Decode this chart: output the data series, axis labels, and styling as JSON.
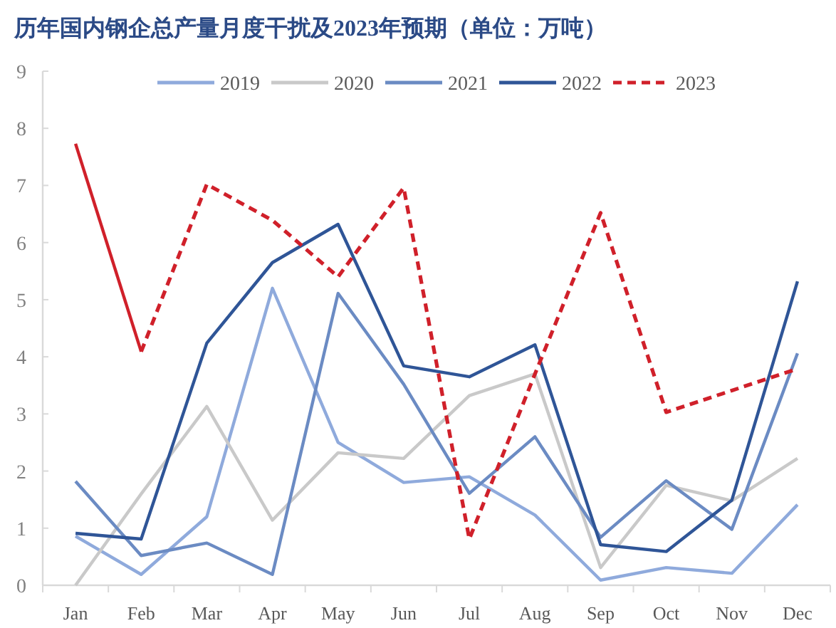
{
  "chart_data": {
    "type": "line",
    "title": "历年国内钢企总产量月度干扰及2023年预期（单位：万吨）",
    "categories": [
      "Jan",
      "Feb",
      "Mar",
      "Apr",
      "May",
      "Jun",
      "Jul",
      "Aug",
      "Sep",
      "Oct",
      "Nov",
      "Dec"
    ],
    "ylim": [
      0,
      9
    ],
    "yticks": [
      0,
      1,
      2,
      3,
      4,
      5,
      6,
      7,
      8,
      9
    ],
    "legend": "top",
    "series": [
      {
        "name": "2019",
        "color": "#8faadc",
        "line_style": "solid",
        "values": [
          0.86,
          0.19,
          1.2,
          5.2,
          2.5,
          1.8,
          1.9,
          1.23,
          0.09,
          0.31,
          0.21,
          1.41
        ]
      },
      {
        "name": "2020",
        "color": "#c9c9c9",
        "line_style": "solid",
        "values": [
          0,
          1.6,
          3.13,
          1.14,
          2.32,
          2.22,
          3.32,
          3.7,
          0.31,
          1.75,
          1.48,
          2.22
        ]
      },
      {
        "name": "2021",
        "color": "#6b8bc3",
        "line_style": "solid",
        "values": [
          1.82,
          0.52,
          0.74,
          0.19,
          5.11,
          3.52,
          1.61,
          2.6,
          0.84,
          1.83,
          0.98,
          4.06
        ]
      },
      {
        "name": "2022",
        "color": "#2f5597",
        "line_style": "solid",
        "values": [
          0.91,
          0.81,
          4.24,
          5.65,
          6.32,
          3.84,
          3.65,
          4.21,
          0.71,
          0.59,
          1.49,
          5.32
        ]
      },
      {
        "name": "2023",
        "color": "#d0202a",
        "line_style": "dashed",
        "values": [
          null,
          4.09,
          7.02,
          6.39,
          5.4,
          6.96,
          0.81,
          3.7,
          6.52,
          3.03,
          3.41,
          3.79
        ]
      },
      {
        "color": "#d0202a",
        "line_style": "solid",
        "values": [
          7.73,
          4.09,
          null,
          null,
          null,
          null,
          null,
          null,
          null,
          null,
          null,
          null
        ]
      }
    ]
  }
}
